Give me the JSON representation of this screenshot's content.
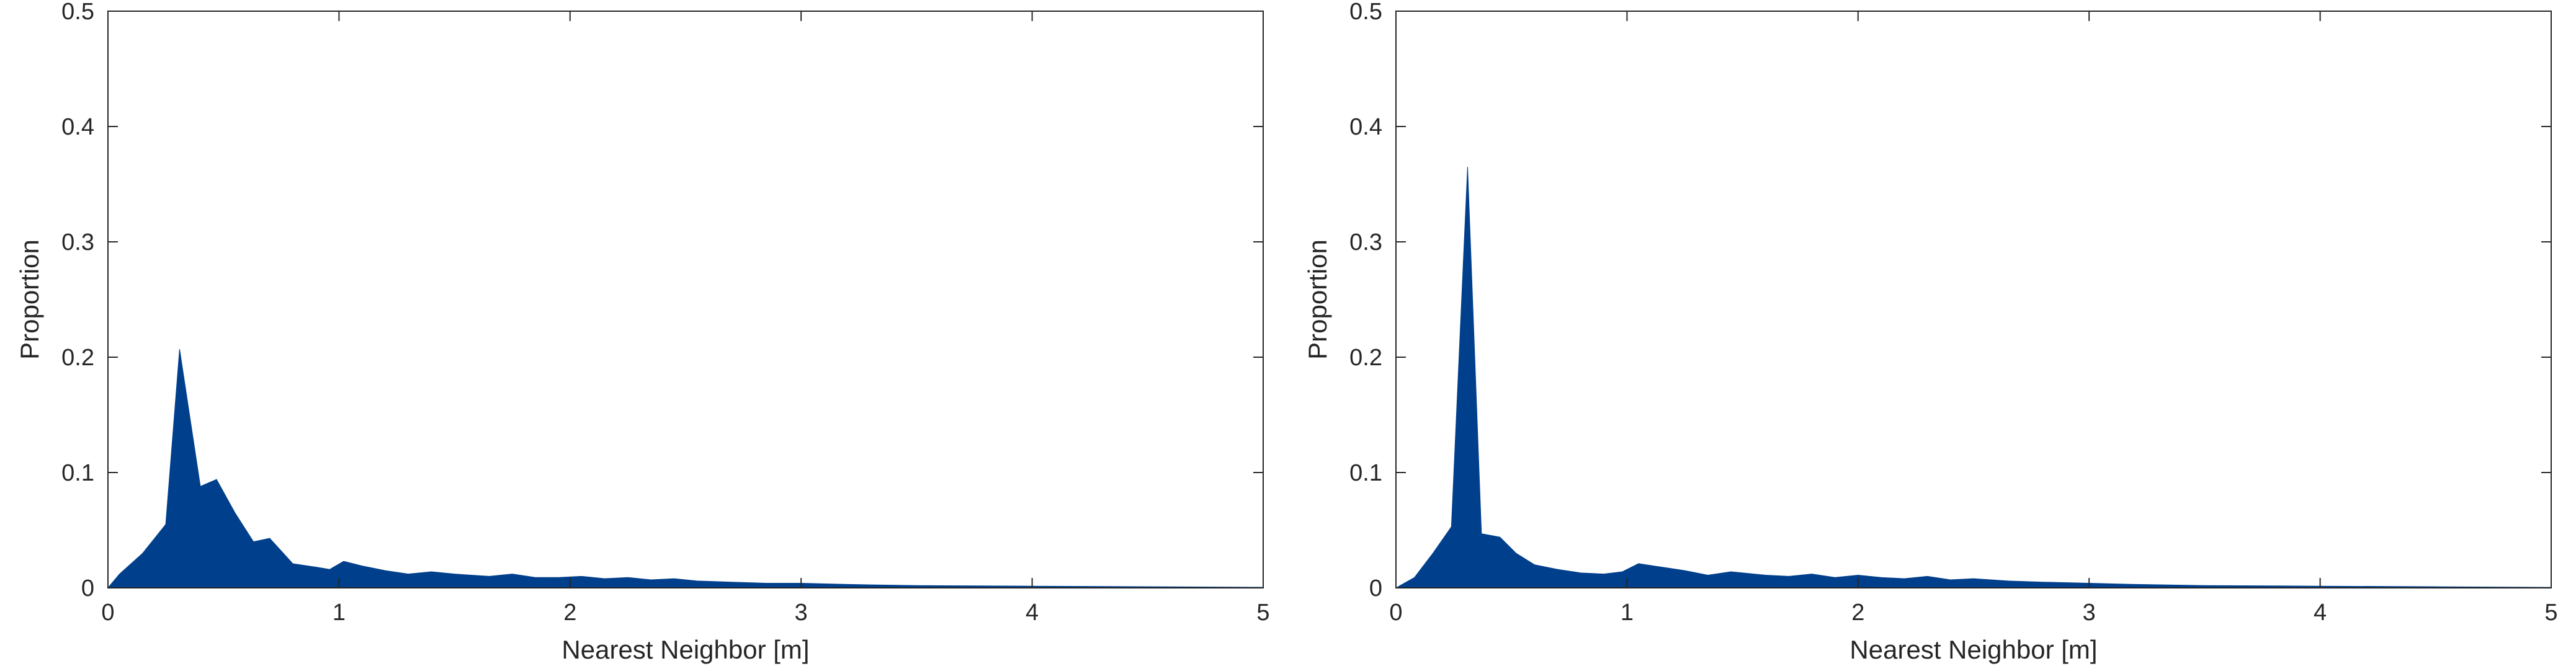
{
  "chart_data": [
    {
      "type": "area",
      "title": "",
      "xlabel": "Nearest Neighbor [m]",
      "ylabel": "Proportion",
      "xlim": [
        0,
        5
      ],
      "ylim": [
        0,
        0.5
      ],
      "xticks": [
        "0",
        "1",
        "2",
        "3",
        "4",
        "5"
      ],
      "yticks": [
        "0",
        "0.1",
        "0.2",
        "0.3",
        "0.4",
        "0.5"
      ],
      "grid": false,
      "legend": "none",
      "color": "#003f8c",
      "x": [
        0,
        0.05,
        0.15,
        0.25,
        0.31,
        0.4,
        0.47,
        0.55,
        0.63,
        0.7,
        0.8,
        0.9,
        0.96,
        1.02,
        1.1,
        1.2,
        1.3,
        1.4,
        1.5,
        1.65,
        1.75,
        1.85,
        1.95,
        2.05,
        2.15,
        2.25,
        2.35,
        2.45,
        2.55,
        2.7,
        2.85,
        3.0,
        3.2,
        3.5,
        4.0,
        4.5,
        5.0
      ],
      "y": [
        0,
        0.012,
        0.03,
        0.055,
        0.207,
        0.088,
        0.094,
        0.065,
        0.04,
        0.043,
        0.021,
        0.018,
        0.016,
        0.023,
        0.019,
        0.015,
        0.012,
        0.014,
        0.012,
        0.01,
        0.012,
        0.009,
        0.009,
        0.01,
        0.008,
        0.009,
        0.007,
        0.008,
        0.006,
        0.005,
        0.004,
        0.004,
        0.003,
        0.002,
        0.0015,
        0.001,
        0.0005
      ]
    },
    {
      "type": "area",
      "title": "",
      "xlabel": "Nearest Neighbor [m]",
      "ylabel": "Proportion",
      "xlim": [
        0,
        5
      ],
      "ylim": [
        0,
        0.5
      ],
      "xticks": [
        "0",
        "1",
        "2",
        "3",
        "4",
        "5"
      ],
      "yticks": [
        "0",
        "0.1",
        "0.2",
        "0.3",
        "0.4",
        "0.5"
      ],
      "grid": false,
      "legend": "none",
      "color": "#003f8c",
      "x": [
        0,
        0.08,
        0.16,
        0.24,
        0.31,
        0.37,
        0.45,
        0.52,
        0.6,
        0.7,
        0.8,
        0.9,
        0.98,
        1.05,
        1.15,
        1.25,
        1.35,
        1.45,
        1.6,
        1.7,
        1.8,
        1.9,
        2.0,
        2.1,
        2.2,
        2.3,
        2.4,
        2.5,
        2.65,
        2.8,
        3.0,
        3.2,
        3.5,
        4.0,
        4.5,
        5.0
      ],
      "y": [
        0,
        0.009,
        0.03,
        0.053,
        0.365,
        0.047,
        0.044,
        0.03,
        0.02,
        0.016,
        0.013,
        0.012,
        0.014,
        0.021,
        0.018,
        0.015,
        0.011,
        0.014,
        0.011,
        0.01,
        0.012,
        0.009,
        0.011,
        0.009,
        0.008,
        0.01,
        0.007,
        0.008,
        0.006,
        0.005,
        0.004,
        0.003,
        0.002,
        0.0015,
        0.001,
        0.0005
      ]
    }
  ]
}
